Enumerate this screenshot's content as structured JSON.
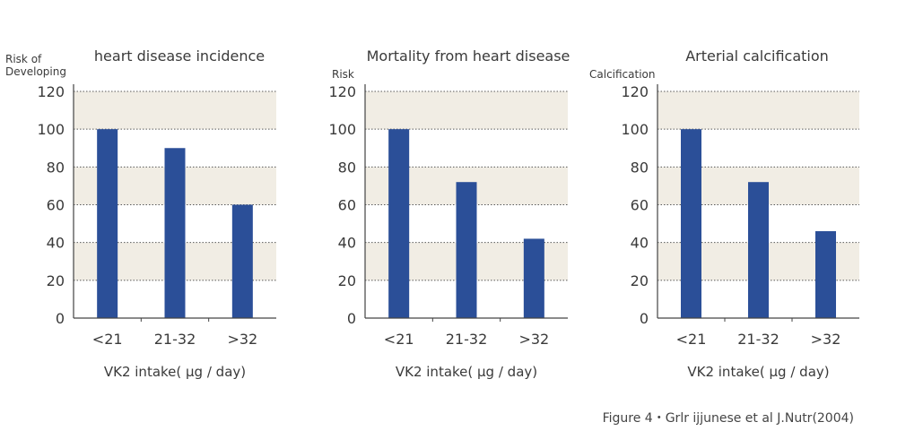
{
  "chart_data": [
    {
      "type": "bar",
      "title": "heart disease incidence",
      "ylabel": "Risk of\nDeveloping",
      "xlabel": "VK2 intake( μg / day)",
      "categories": [
        "<21",
        "21-32",
        ">32"
      ],
      "values": [
        100,
        90,
        60
      ],
      "yticks": [
        0,
        20,
        40,
        60,
        80,
        100,
        120
      ],
      "ylim": [
        0,
        120
      ],
      "grid": true,
      "bar_color": "#2b4f98",
      "band_color": "#f1ede4"
    },
    {
      "type": "bar",
      "title": "Mortality from heart disease",
      "ylabel": "Risk",
      "xlabel": "VK2 intake( μg / day)",
      "categories": [
        "<21",
        "21-32",
        ">32"
      ],
      "values": [
        100,
        72,
        42
      ],
      "yticks": [
        0,
        20,
        40,
        60,
        80,
        100,
        120
      ],
      "ylim": [
        0,
        120
      ],
      "grid": true,
      "bar_color": "#2b4f98",
      "band_color": "#f1ede4"
    },
    {
      "type": "bar",
      "title": "Arterial calcification",
      "ylabel": "Calcification",
      "xlabel": "VK2 intake( μg / day)",
      "categories": [
        "<21",
        "21-32",
        ">32"
      ],
      "values": [
        100,
        72,
        46
      ],
      "yticks": [
        0,
        20,
        40,
        60,
        80,
        100,
        120
      ],
      "ylim": [
        0,
        120
      ],
      "grid": true,
      "bar_color": "#2b4f98",
      "band_color": "#f1ede4"
    }
  ],
  "caption": "Figure 4・Grlr ijjunese et al J.Nutr(2004)"
}
